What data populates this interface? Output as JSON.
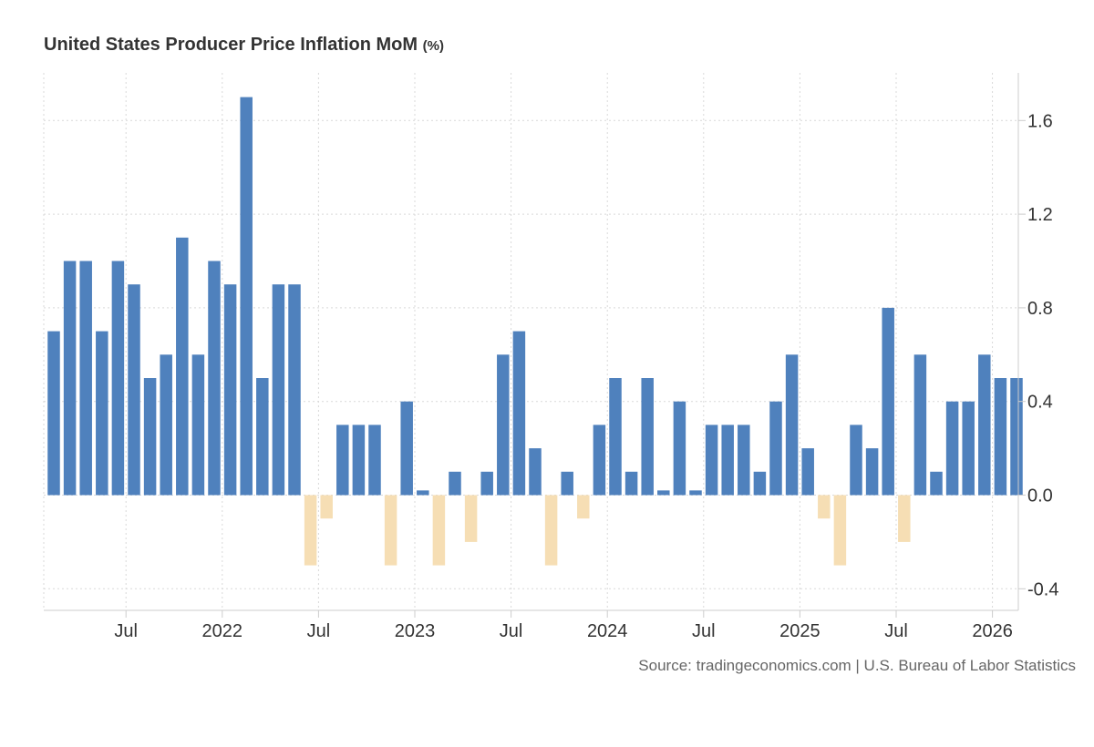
{
  "chart_data": {
    "type": "bar",
    "title": "United States Producer Price Inflation MoM",
    "unit": "(%)",
    "source": "Source: tradingeconomics.com | U.S. Bureau of Labor Statistics",
    "x_tick_labels": [
      {
        "label": "Jul",
        "index": 4.5
      },
      {
        "label": "2022",
        "index": 10.5
      },
      {
        "label": "Jul",
        "index": 16.5
      },
      {
        "label": "2023",
        "index": 22.5
      },
      {
        "label": "Jul",
        "index": 28.5
      },
      {
        "label": "2024",
        "index": 34.5
      },
      {
        "label": "Jul",
        "index": 40.5
      },
      {
        "label": "2025",
        "index": 46.5
      },
      {
        "label": "Jul",
        "index": 52.5
      },
      {
        "label": "2026",
        "index": 58.5
      }
    ],
    "y_ticks": [
      {
        "value": 1.6,
        "label": "1.6"
      },
      {
        "value": 1.2,
        "label": "1.2"
      },
      {
        "value": 0.8,
        "label": "0.8"
      },
      {
        "value": 0.4,
        "label": "0.4"
      },
      {
        "value": 0.0,
        "label": "0.0"
      },
      {
        "value": -0.4,
        "label": "-0.4"
      }
    ],
    "ylim": [
      -0.5,
      1.8
    ],
    "grid": true,
    "axis_position": "right",
    "colors": {
      "positive": "#4f81bd",
      "negative": "#f6deb4",
      "grid": "#d9d9d9",
      "axis": "#cccccc"
    },
    "values": [
      0.7,
      1.0,
      1.0,
      0.7,
      1.0,
      0.9,
      0.5,
      0.6,
      1.1,
      0.6,
      1.0,
      0.9,
      1.7,
      0.5,
      0.9,
      0.9,
      -0.3,
      -0.1,
      0.3,
      0.3,
      0.3,
      -0.3,
      0.4,
      0.02,
      -0.3,
      0.1,
      -0.2,
      0.1,
      0.6,
      0.7,
      0.2,
      -0.3,
      0.1,
      -0.1,
      0.3,
      0.5,
      0.1,
      0.5,
      0.02,
      0.4,
      0.02,
      0.3,
      0.3,
      0.3,
      0.1,
      0.4,
      0.6,
      0.2,
      -0.1,
      -0.3,
      0.3,
      0.2,
      0.8,
      -0.2,
      0.6,
      0.1,
      0.4,
      0.4,
      0.6,
      0.5,
      0.5
    ]
  }
}
